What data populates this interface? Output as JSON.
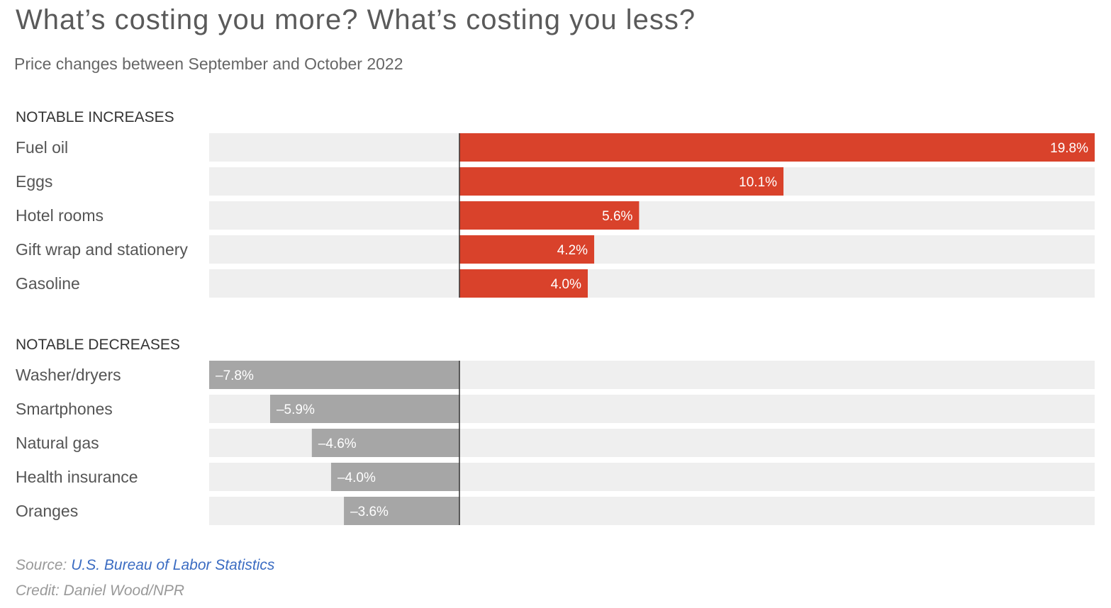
{
  "title": "What’s costing you more? What’s costing you less?",
  "subtitle": "Price changes between September and October 2022",
  "colors": {
    "increase": "#d9422b",
    "decrease": "#a6a6a6",
    "track": "#efefef",
    "axis": "#333333"
  },
  "chart_data": {
    "type": "bar",
    "orientation": "horizontal",
    "unit": "%",
    "xlim": [
      -7.8,
      19.8
    ],
    "groups": [
      {
        "heading": "NOTABLE INCREASES",
        "items": [
          {
            "label": "Fuel oil",
            "value": 19.8,
            "value_label": "19.8%"
          },
          {
            "label": "Eggs",
            "value": 10.1,
            "value_label": "10.1%"
          },
          {
            "label": "Hotel rooms",
            "value": 5.6,
            "value_label": "5.6%"
          },
          {
            "label": "Gift wrap and stationery",
            "value": 4.2,
            "value_label": "4.2%"
          },
          {
            "label": "Gasoline",
            "value": 4.0,
            "value_label": "4.0%"
          }
        ]
      },
      {
        "heading": "NOTABLE DECREASES",
        "items": [
          {
            "label": "Washer/dryers",
            "value": -7.8,
            "value_label": "–7.8%"
          },
          {
            "label": "Smartphones",
            "value": -5.9,
            "value_label": "–5.9%"
          },
          {
            "label": "Natural gas",
            "value": -4.6,
            "value_label": "–4.6%"
          },
          {
            "label": "Health insurance",
            "value": -4.0,
            "value_label": "–4.0%"
          },
          {
            "label": "Oranges",
            "value": -3.6,
            "value_label": "–3.6%"
          }
        ]
      }
    ]
  },
  "footer": {
    "source_prefix": "Source: ",
    "source_link": "U.S. Bureau of Labor Statistics",
    "credit": "Credit: Daniel Wood/NPR"
  }
}
